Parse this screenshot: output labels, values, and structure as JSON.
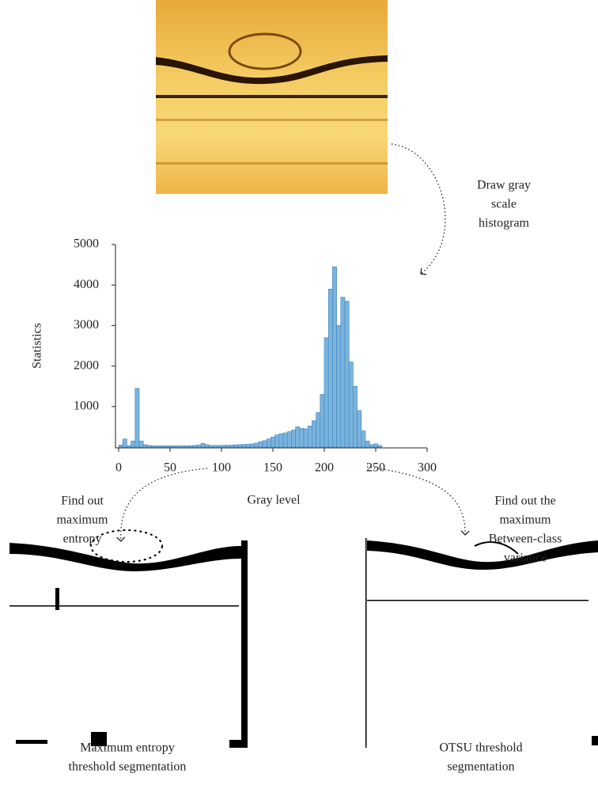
{
  "chart_data": {
    "type": "histogram",
    "ylabel": "Statistics",
    "xlabel": "Gray level",
    "bins": [
      0,
      4,
      8,
      12,
      16,
      20,
      24,
      28,
      32,
      36,
      40,
      44,
      48,
      52,
      56,
      60,
      64,
      68,
      72,
      76,
      80,
      84,
      88,
      92,
      96,
      100,
      104,
      108,
      112,
      116,
      120,
      124,
      128,
      132,
      136,
      140,
      144,
      148,
      152,
      156,
      160,
      164,
      168,
      172,
      176,
      180,
      184,
      188,
      192,
      196,
      200,
      204,
      208,
      212,
      216,
      220,
      224,
      228,
      232,
      236,
      240,
      244,
      248,
      252,
      256
    ],
    "values": [
      50,
      200,
      30,
      150,
      1450,
      150,
      60,
      40,
      30,
      30,
      30,
      30,
      30,
      30,
      30,
      30,
      30,
      35,
      40,
      50,
      90,
      60,
      40,
      40,
      40,
      45,
      45,
      50,
      55,
      60,
      65,
      70,
      80,
      100,
      130,
      160,
      200,
      250,
      300,
      330,
      350,
      380,
      420,
      500,
      460,
      450,
      520,
      650,
      850,
      1300,
      2700,
      3900,
      4450,
      3000,
      3700,
      3600,
      2100,
      1500,
      900,
      400,
      150,
      60,
      80,
      40
    ],
    "color": "#7ab3dc",
    "xlim": [
      0,
      300
    ],
    "xticks": [
      0,
      50,
      100,
      150,
      200,
      250,
      300
    ],
    "ylim": [
      0,
      5000
    ],
    "yticks": [
      1000,
      2000,
      3000,
      4000,
      5000
    ]
  },
  "steps": {
    "histogram_step": [
      "Draw gray",
      "scale",
      "histogram"
    ],
    "entropy_step": [
      "Find out",
      "maximum",
      "entropy"
    ],
    "otsu_step": [
      "Find out the",
      "maximum",
      "Between-class",
      "variance"
    ]
  },
  "captions": {
    "entropy_result": [
      "Maximum entropy",
      "threshold segmentation"
    ],
    "otsu_result": [
      "OTSU threshold",
      "segmentation"
    ]
  }
}
